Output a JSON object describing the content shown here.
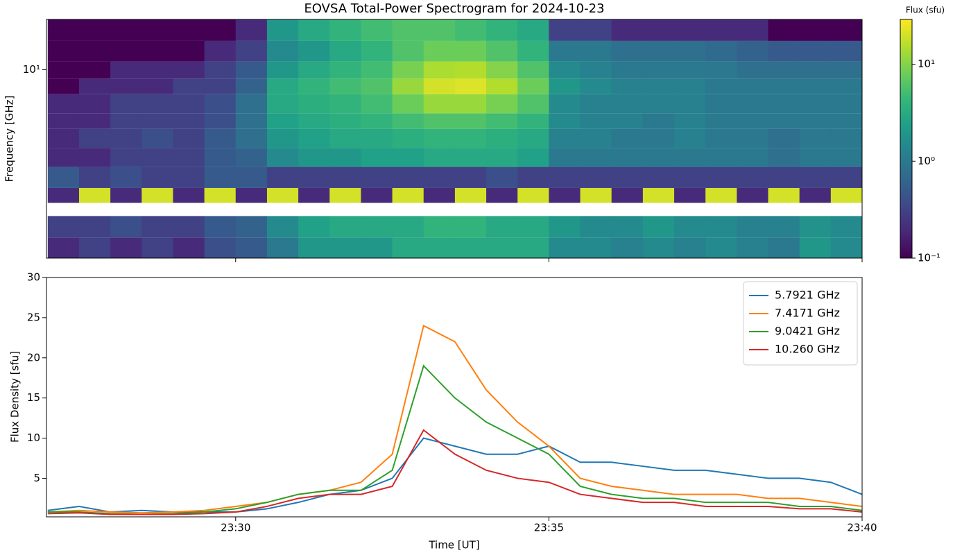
{
  "chart_data": [
    {
      "type": "heatmap",
      "title": "EOVSA Total-Power Spectrogram for 2024-10-23",
      "y_label": "Frequency [GHz]",
      "colorbar_label": "Flux (sfu)",
      "colormap": "viridis",
      "ylog": true,
      "zlog": true,
      "xlim": [
        26.98,
        40
      ],
      "ylim": [
        1.1,
        18
      ],
      "yticks": [
        {
          "value": 10,
          "label": "10¹"
        }
      ],
      "zlim": [
        0.1,
        29
      ],
      "zticks": [
        {
          "value": 0.1,
          "label": "10⁻¹"
        },
        {
          "value": 1,
          "label": "10⁰"
        },
        {
          "value": 10,
          "label": "10¹"
        }
      ],
      "time_bins": [
        27,
        27.5,
        28,
        28.5,
        29,
        29.5,
        30,
        30.5,
        31,
        31.5,
        32,
        32.5,
        33,
        33.5,
        34,
        34.5,
        35,
        35.5,
        36,
        36.5,
        37,
        37.5,
        38,
        38.5,
        39,
        39.5,
        40
      ],
      "freq_bins": [
        1.1,
        1.4,
        1.8,
        2.1,
        2.5,
        3.2,
        4,
        5,
        6,
        7.5,
        9,
        11,
        14,
        18
      ],
      "values": [
        [
          0.2,
          0.3,
          0.2,
          0.3,
          0.2,
          0.4,
          0.5,
          1,
          2,
          2,
          2,
          3,
          3,
          3,
          3,
          3,
          1.5,
          1.5,
          1.2,
          1.5,
          1.2,
          1.5,
          1.2,
          1,
          2,
          1.5
        ],
        [
          0.3,
          0.3,
          0.4,
          0.3,
          0.3,
          0.5,
          0.6,
          1.5,
          2.5,
          3,
          3,
          3,
          4,
          4,
          3,
          3,
          2,
          1.5,
          1.5,
          2,
          1.5,
          1.5,
          1.2,
          1.2,
          1.8,
          1.5
        ],
        [
          null,
          null,
          null,
          null,
          null,
          null,
          null,
          null,
          null,
          null,
          null,
          null,
          null,
          null,
          null,
          null,
          null,
          null,
          null,
          null,
          null,
          null,
          null,
          null,
          null,
          null
        ],
        [
          0.2,
          20,
          0.2,
          20,
          0.2,
          20,
          0.2,
          20,
          0.2,
          20,
          0.2,
          20,
          0.2,
          20,
          0.2,
          20,
          0.2,
          20,
          0.2,
          20,
          0.2,
          20,
          0.2,
          20,
          0.2,
          20
        ],
        [
          0.5,
          0.3,
          0.4,
          0.3,
          0.3,
          0.5,
          0.5,
          0.3,
          0.3,
          0.3,
          0.3,
          0.3,
          0.3,
          0.3,
          0.4,
          0.3,
          0.3,
          0.3,
          0.3,
          0.3,
          0.3,
          0.3,
          0.3,
          0.3,
          0.3,
          0.3
        ],
        [
          0.2,
          0.2,
          0.3,
          0.3,
          0.3,
          0.5,
          0.6,
          1.5,
          2,
          2,
          2.5,
          2.5,
          3,
          3,
          3,
          2.5,
          1,
          1,
          1,
          1,
          1,
          1,
          1,
          0.8,
          1,
          1
        ],
        [
          0.2,
          0.3,
          0.3,
          0.4,
          0.3,
          0.5,
          0.8,
          2,
          2.5,
          3,
          3,
          3.5,
          4,
          4,
          3.5,
          3,
          1.2,
          1.2,
          1,
          1,
          1.2,
          1,
          1,
          0.8,
          1,
          1
        ],
        [
          0.2,
          0.2,
          0.3,
          0.3,
          0.3,
          0.4,
          0.8,
          2.5,
          3,
          3.5,
          4,
          5,
          6,
          6,
          5,
          4,
          1.5,
          1.2,
          1.2,
          1,
          1.2,
          1,
          1,
          1,
          1,
          1
        ],
        [
          0.2,
          0.2,
          0.3,
          0.3,
          0.3,
          0.4,
          0.8,
          3,
          3.5,
          4,
          5,
          8,
          12,
          12,
          9,
          6,
          1.5,
          1.2,
          1.2,
          1.2,
          1.2,
          1,
          1,
          1,
          1,
          1
        ],
        [
          0.1,
          0.2,
          0.2,
          0.2,
          0.3,
          0.3,
          0.6,
          3,
          4,
          5,
          6,
          12,
          20,
          22,
          15,
          8,
          2,
          1.5,
          1.2,
          1.2,
          1.2,
          1,
          1,
          1,
          1,
          1
        ],
        [
          0.1,
          0.1,
          0.2,
          0.2,
          0.2,
          0.3,
          0.5,
          2,
          3,
          4,
          5,
          9,
          14,
          15,
          10,
          6,
          1.5,
          1.2,
          1,
          1,
          1,
          1,
          0.8,
          0.8,
          0.8,
          0.8
        ],
        [
          0.1,
          0.1,
          0.1,
          0.1,
          0.1,
          0.2,
          0.3,
          1.5,
          2,
          3,
          4,
          6,
          8,
          8,
          6,
          4,
          1,
          1,
          0.8,
          0.8,
          0.8,
          0.7,
          0.6,
          0.5,
          0.5,
          0.5
        ],
        [
          0.1,
          0.1,
          0.1,
          0.1,
          0.1,
          0.1,
          0.2,
          2,
          3,
          4,
          5,
          6,
          6,
          5,
          4,
          3,
          0.3,
          0.3,
          0.2,
          0.2,
          0.2,
          0.2,
          0.2,
          0.1,
          0.1,
          0.1
        ]
      ]
    },
    {
      "type": "line",
      "x_label": "Time [UT]",
      "y_label": "Flux Density [sfu]",
      "legend": "upper right",
      "xlim": [
        26.98,
        40
      ],
      "xticks": [
        {
          "value": 30,
          "label": "23:30"
        },
        {
          "value": 35,
          "label": "23:35"
        },
        {
          "value": 40,
          "label": "23:40"
        }
      ],
      "ylim": [
        0.2,
        30
      ],
      "yticks": [
        5,
        10,
        15,
        20,
        25,
        30
      ],
      "x": [
        27,
        27.5,
        28,
        28.5,
        29,
        29.5,
        30,
        30.5,
        31,
        31.5,
        32,
        32.5,
        33,
        33.5,
        34,
        34.5,
        35,
        35.5,
        36,
        36.5,
        37,
        37.5,
        38,
        38.5,
        39,
        39.5,
        40
      ],
      "series": [
        {
          "name": "5.7921 GHz",
          "color": "#1f77b4",
          "values": [
            1,
            1.5,
            0.8,
            1,
            0.8,
            0.8,
            0.8,
            1.2,
            2,
            3,
            3.5,
            5,
            10,
            9,
            8,
            8,
            9,
            7,
            7,
            6.5,
            6,
            6,
            5.5,
            5,
            5,
            4.5,
            3
          ]
        },
        {
          "name": "7.4171 GHz",
          "color": "#ff7f0e",
          "values": [
            0.8,
            1,
            0.8,
            0.7,
            0.8,
            1,
            1.5,
            2,
            3,
            3.5,
            4.5,
            8,
            24,
            22,
            16,
            12,
            9,
            5,
            4,
            3.5,
            3,
            3,
            3,
            2.5,
            2.5,
            2,
            1.5
          ]
        },
        {
          "name": "9.0421 GHz",
          "color": "#2ca02c",
          "values": [
            0.8,
            0.8,
            0.6,
            0.5,
            0.6,
            0.8,
            1.2,
            2,
            3,
            3.5,
            3.5,
            6,
            19,
            15,
            12,
            10,
            8,
            4,
            3,
            2.5,
            2.5,
            2,
            2,
            2,
            1.5,
            1.5,
            1
          ]
        },
        {
          "name": "10.260 GHz",
          "color": "#d62728",
          "values": [
            0.6,
            0.7,
            0.5,
            0.5,
            0.5,
            0.6,
            0.8,
            1.5,
            2.5,
            3,
            3,
            4,
            11,
            8,
            6,
            5,
            4.5,
            3,
            2.5,
            2,
            2,
            1.5,
            1.5,
            1.5,
            1.2,
            1.2,
            0.8
          ]
        }
      ]
    }
  ]
}
